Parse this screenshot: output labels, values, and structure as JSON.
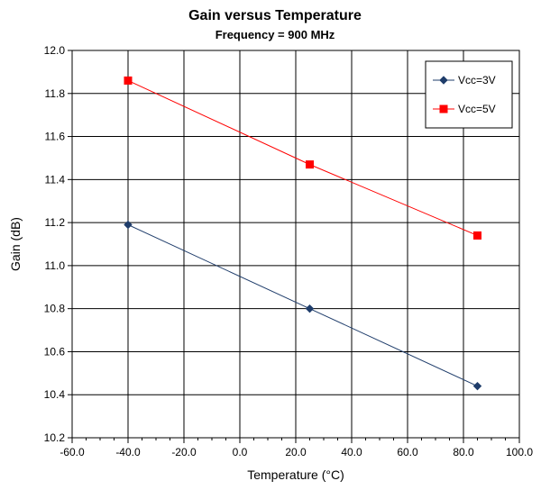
{
  "chart_data": {
    "type": "line",
    "title": "Gain versus Temperature",
    "subtitle": "Frequency = 900 MHz",
    "xlabel": "Temperature (°C)",
    "ylabel": "Gain (dB)",
    "xlim": [
      -60,
      100
    ],
    "ylim": [
      10.2,
      12.0
    ],
    "xticks": [
      "-60.0",
      "-40.0",
      "-20.0",
      "0.0",
      "20.0",
      "40.0",
      "60.0",
      "80.0",
      "100.0"
    ],
    "yticks": [
      "10.2",
      "10.4",
      "10.6",
      "10.8",
      "11.0",
      "11.2",
      "11.4",
      "11.6",
      "11.8",
      "12.0"
    ],
    "grid": true,
    "legend_position": "top-right",
    "series": [
      {
        "name": "Vcc=3V",
        "color": "#1f3d6b",
        "marker": "diamond",
        "x": [
          -40,
          25,
          85
        ],
        "y": [
          11.19,
          10.8,
          10.44
        ]
      },
      {
        "name": "Vcc=5V",
        "color": "#ff0000",
        "marker": "square",
        "x": [
          -40,
          25,
          85
        ],
        "y": [
          11.86,
          11.47,
          11.14
        ]
      }
    ]
  }
}
